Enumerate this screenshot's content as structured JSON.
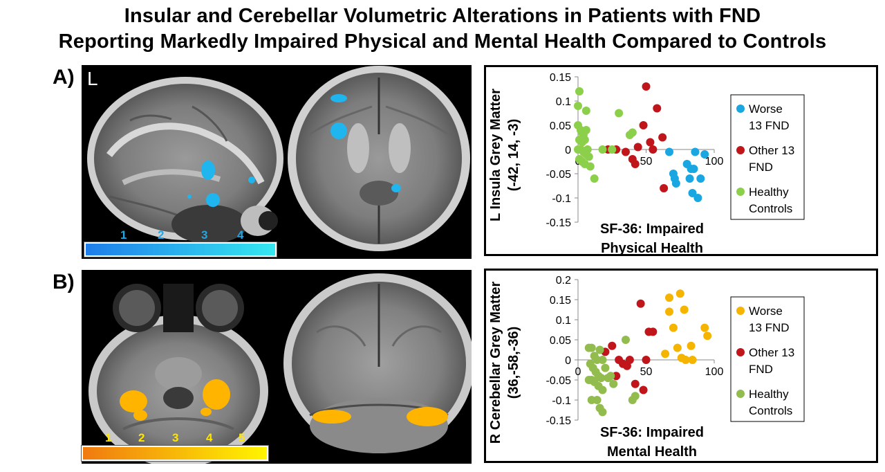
{
  "title": {
    "line1": "Insular and Cerebellar Volumetric Alterations in Patients with FND",
    "line2": "Reporting Markedly Impaired Physical and Mental Health Compared to Controls"
  },
  "panelA": {
    "label": "A)",
    "hemisphere_label": "L",
    "colorbar_ticks": [
      "1",
      "2",
      "3",
      "4"
    ],
    "colorbar_colors": [
      "#1e7dea",
      "#35e8f0"
    ]
  },
  "panelB": {
    "label": "B)",
    "colorbar_ticks": [
      "1",
      "2",
      "3",
      "4",
      "5"
    ],
    "colorbar_colors": [
      "#f07a10",
      "#fff500"
    ]
  },
  "chart_data": [
    {
      "type": "scatter",
      "ylabel_line1": "L Insula Grey Matter",
      "ylabel_line2": "(-42, 14, -3)",
      "xlabel_line1": "SF-36: Impaired",
      "xlabel_line2": "Physical Health",
      "xlim": [
        0,
        100
      ],
      "ylim": [
        -0.15,
        0.15
      ],
      "xticks": [
        "0",
        "50",
        "100"
      ],
      "yticks": [
        "0.15",
        "0.1",
        "0.05",
        "0",
        "-0.05",
        "-0.1",
        "-0.15"
      ],
      "ytick_values": [
        0.15,
        0.1,
        0.05,
        0,
        -0.05,
        -0.1,
        -0.15
      ],
      "legend_position": "right",
      "series": [
        {
          "name_line1": "Worse",
          "name_line2": "13 FND",
          "color": "#1aa6e0",
          "points": [
            [
              67,
              -0.005
            ],
            [
              70,
              -0.05
            ],
            [
              71,
              -0.06
            ],
            [
              72,
              -0.07
            ],
            [
              80,
              -0.03
            ],
            [
              82,
              -0.06
            ],
            [
              83,
              -0.04
            ],
            [
              85,
              -0.04
            ],
            [
              84,
              -0.09
            ],
            [
              86,
              -0.005
            ],
            [
              88,
              -0.1
            ],
            [
              90,
              -0.06
            ],
            [
              93,
              -0.01
            ]
          ]
        },
        {
          "name_line1": "Other 13",
          "name_line2": "FND",
          "color": "#c0151a",
          "points": [
            [
              22,
              0.0
            ],
            [
              28,
              0.0
            ],
            [
              35,
              -0.005
            ],
            [
              40,
              -0.02
            ],
            [
              42,
              -0.03
            ],
            [
              44,
              0.005
            ],
            [
              48,
              0.05
            ],
            [
              50,
              0.13
            ],
            [
              53,
              0.015
            ],
            [
              55,
              0.0
            ],
            [
              58,
              0.085
            ],
            [
              62,
              0.025
            ],
            [
              63,
              -0.08
            ]
          ]
        },
        {
          "name_line1": "Healthy",
          "name_line2": "Controls",
          "color": "#8ccf4a",
          "points": [
            [
              1,
              0.12
            ],
            [
              0,
              0.09
            ],
            [
              6,
              0.08
            ],
            [
              0,
              0.05
            ],
            [
              2,
              0.04
            ],
            [
              3,
              0.035
            ],
            [
              4,
              0.03
            ],
            [
              6,
              0.04
            ],
            [
              1,
              0.02
            ],
            [
              3,
              0.015
            ],
            [
              5,
              0.02
            ],
            [
              0,
              0.0
            ],
            [
              2,
              0.0
            ],
            [
              4,
              -0.005
            ],
            [
              7,
              0.0
            ],
            [
              1,
              -0.02
            ],
            [
              3,
              -0.025
            ],
            [
              5,
              -0.03
            ],
            [
              8,
              -0.015
            ],
            [
              9,
              -0.035
            ],
            [
              12,
              -0.06
            ],
            [
              18,
              0.0
            ],
            [
              25,
              0.0
            ],
            [
              30,
              0.075
            ],
            [
              38,
              0.03
            ],
            [
              40,
              0.035
            ],
            [
              6,
              -0.01
            ]
          ]
        }
      ]
    },
    {
      "type": "scatter",
      "ylabel_line1": "R Cerebellar Grey Matter",
      "ylabel_line2": "(36,-58,-36)",
      "xlabel_line1": "SF-36: Impaired",
      "xlabel_line2": "Mental Health",
      "xlim": [
        0,
        100
      ],
      "ylim": [
        -0.15,
        0.2
      ],
      "xticks": [
        "0",
        "50",
        "100"
      ],
      "yticks": [
        "0.2",
        "0.15",
        "0.1",
        "0.05",
        "0",
        "-0.05",
        "-0.1",
        "-0.15"
      ],
      "ytick_values": [
        0.2,
        0.15,
        0.1,
        0.05,
        0,
        -0.05,
        -0.1,
        -0.15
      ],
      "legend_position": "right",
      "series": [
        {
          "name_line1": "Worse",
          "name_line2": "13 FND",
          "color": "#f5b400",
          "points": [
            [
              64,
              0.015
            ],
            [
              67,
              0.155
            ],
            [
              67,
              0.12
            ],
            [
              70,
              0.08
            ],
            [
              73,
              0.03
            ],
            [
              75,
              0.165
            ],
            [
              76,
              0.005
            ],
            [
              78,
              0.125
            ],
            [
              79,
              0.0
            ],
            [
              83,
              0.035
            ],
            [
              84,
              0.0
            ],
            [
              93,
              0.08
            ],
            [
              95,
              0.06
            ]
          ]
        },
        {
          "name_line1": "Other 13",
          "name_line2": "FND",
          "color": "#c0151a",
          "points": [
            [
              20,
              0.02
            ],
            [
              25,
              0.035
            ],
            [
              28,
              -0.04
            ],
            [
              30,
              0.0
            ],
            [
              33,
              -0.01
            ],
            [
              36,
              -0.015
            ],
            [
              38,
              0.0
            ],
            [
              42,
              -0.06
            ],
            [
              46,
              0.14
            ],
            [
              48,
              -0.075
            ],
            [
              50,
              0.0
            ],
            [
              52,
              0.07
            ],
            [
              55,
              0.07
            ]
          ]
        },
        {
          "name_line1": "Healthy",
          "name_line2": "Controls",
          "color": "#93bc4e",
          "points": [
            [
              8,
              0.03
            ],
            [
              10,
              0.03
            ],
            [
              12,
              0.01
            ],
            [
              14,
              0.0
            ],
            [
              16,
              0.025
            ],
            [
              18,
              0.0
            ],
            [
              9,
              -0.01
            ],
            [
              11,
              -0.02
            ],
            [
              13,
              -0.03
            ],
            [
              15,
              -0.04
            ],
            [
              17,
              -0.045
            ],
            [
              8,
              -0.05
            ],
            [
              10,
              -0.05
            ],
            [
              12,
              -0.055
            ],
            [
              15,
              -0.065
            ],
            [
              18,
              -0.075
            ],
            [
              20,
              -0.02
            ],
            [
              22,
              -0.045
            ],
            [
              24,
              -0.04
            ],
            [
              26,
              -0.06
            ],
            [
              10,
              -0.1
            ],
            [
              14,
              -0.1
            ],
            [
              16,
              -0.12
            ],
            [
              18,
              -0.13
            ],
            [
              35,
              0.05
            ],
            [
              40,
              -0.1
            ],
            [
              42,
              -0.09
            ]
          ]
        }
      ]
    }
  ]
}
